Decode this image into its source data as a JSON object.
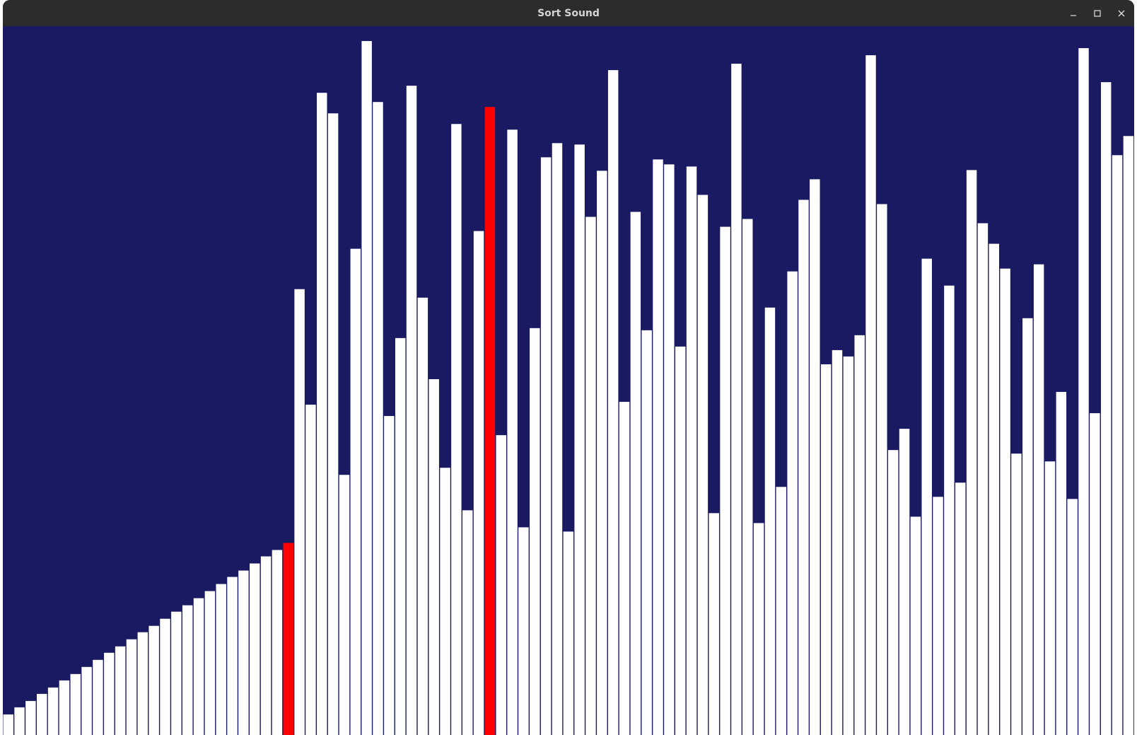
{
  "window": {
    "title": "Sort Sound",
    "controls": {
      "minimize_icon": "minimize-icon",
      "maximize_icon": "maximize-icon",
      "close_icon": "close-icon"
    }
  },
  "colors": {
    "background": "#1a1a62",
    "bar": "#ffffff",
    "highlight": "#ff0000"
  },
  "chart_data": {
    "type": "bar",
    "title": "",
    "xlabel": "",
    "ylabel": "",
    "ylim": [
      0,
      1000
    ],
    "highlighted_indices": [
      25,
      43
    ],
    "values": [
      29,
      39,
      48,
      58,
      67,
      77,
      86,
      96,
      106,
      116,
      125,
      135,
      145,
      154,
      164,
      174,
      183,
      193,
      203,
      213,
      223,
      232,
      242,
      252,
      261,
      271,
      629,
      466,
      906,
      877,
      367,
      686,
      979,
      893,
      450,
      560,
      916,
      617,
      502,
      377,
      862,
      317,
      711,
      886,
      423,
      854,
      293,
      574,
      815,
      835,
      287,
      833,
      731,
      796,
      938,
      470,
      738,
      571,
      812,
      805,
      548,
      802,
      762,
      313,
      717,
      947,
      728,
      299,
      603,
      350,
      654,
      755,
      784,
      523,
      543,
      534,
      564,
      959,
      749,
      402,
      432,
      308,
      672,
      336,
      634,
      356,
      797,
      722,
      693,
      658,
      397,
      588,
      664,
      386,
      484,
      333,
      969,
      454,
      921,
      818,
      845
    ]
  }
}
